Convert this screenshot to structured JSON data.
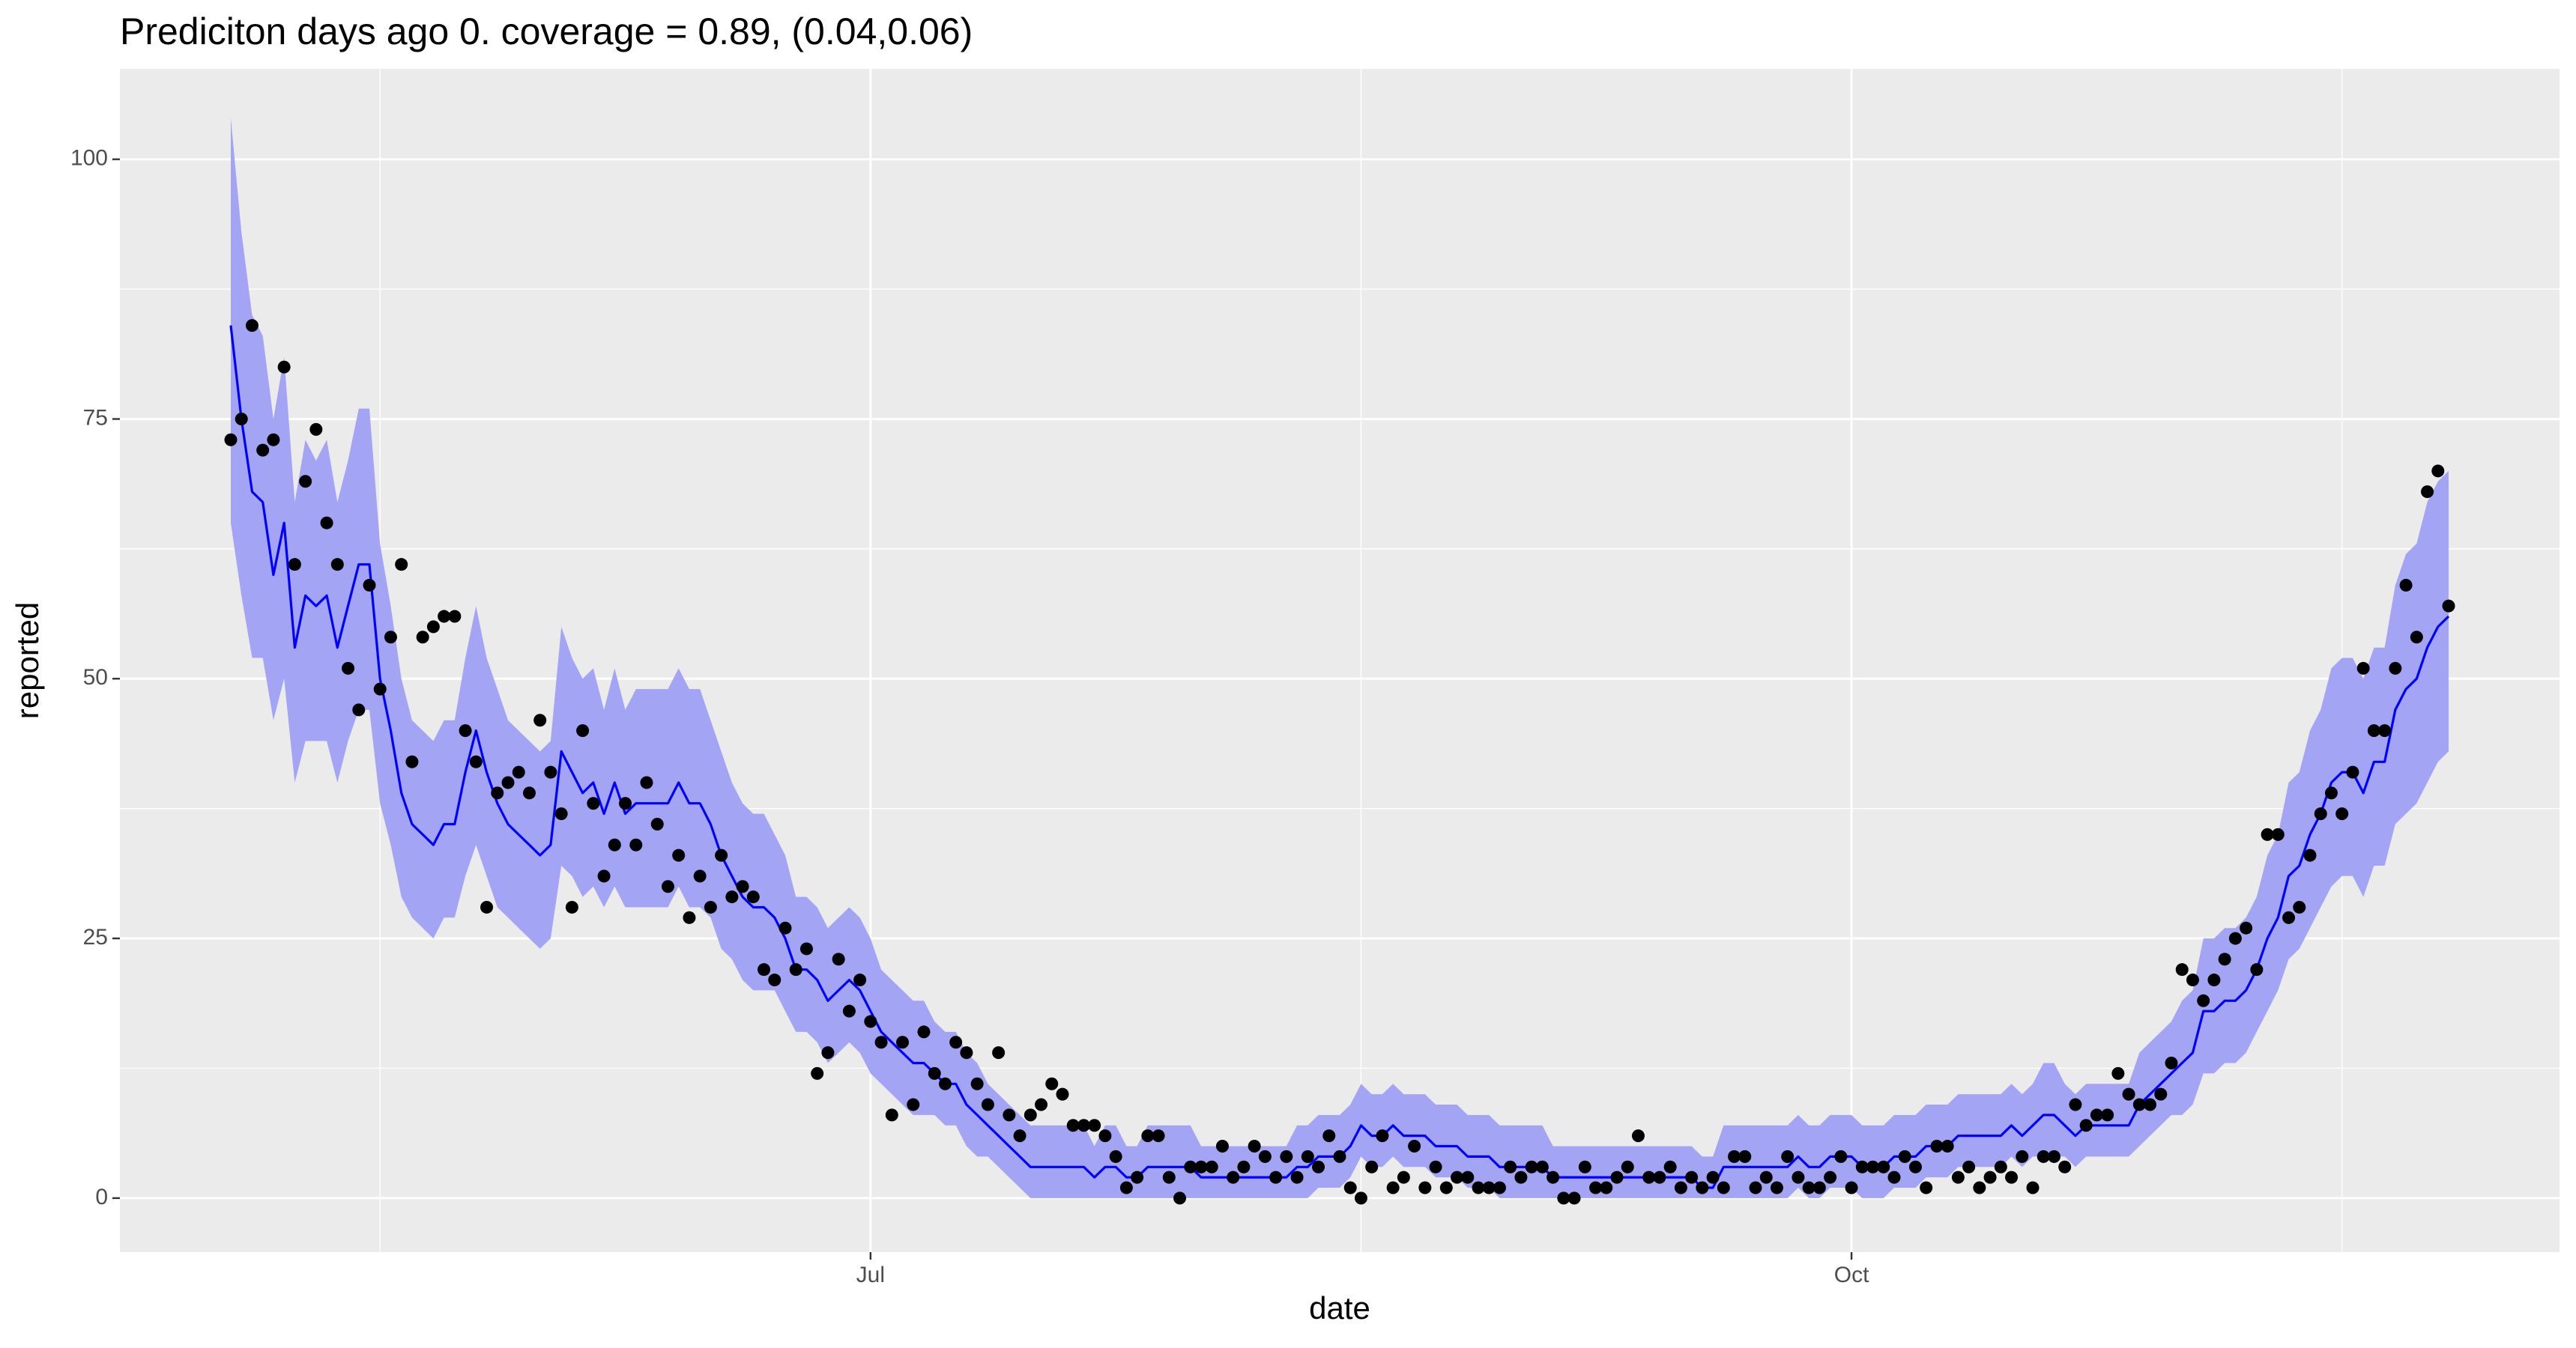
{
  "chart_data": {
    "type": "line",
    "title": "Prediciton days ago 0. coverage = 0.89, (0.04,0.06)",
    "x_label": "date",
    "y_label": "reported",
    "xlim": [
      111.6,
      340.4
    ],
    "xticks": [
      {
        "value": 182,
        "label": "Jul"
      },
      {
        "value": 274,
        "label": "Oct"
      }
    ],
    "ylim": [
      -5.2,
      108.7
    ],
    "yticks": [
      0,
      25,
      50,
      75,
      100
    ],
    "grid": true,
    "x": [
      122,
      123,
      124,
      125,
      126,
      127,
      128,
      129,
      130,
      131,
      132,
      133,
      134,
      135,
      136,
      137,
      138,
      139,
      140,
      141,
      142,
      143,
      144,
      145,
      146,
      147,
      148,
      149,
      150,
      151,
      152,
      153,
      154,
      155,
      156,
      157,
      158,
      159,
      160,
      161,
      162,
      163,
      164,
      165,
      166,
      167,
      168,
      169,
      170,
      171,
      172,
      173,
      174,
      175,
      176,
      177,
      178,
      179,
      180,
      181,
      182,
      183,
      184,
      185,
      186,
      187,
      188,
      189,
      190,
      191,
      192,
      193,
      194,
      195,
      196,
      197,
      198,
      199,
      200,
      201,
      202,
      203,
      204,
      205,
      206,
      207,
      208,
      209,
      210,
      211,
      212,
      213,
      214,
      215,
      216,
      217,
      218,
      219,
      220,
      221,
      222,
      223,
      224,
      225,
      226,
      227,
      228,
      229,
      230,
      231,
      232,
      233,
      234,
      235,
      236,
      237,
      238,
      239,
      240,
      241,
      242,
      243,
      244,
      245,
      246,
      247,
      248,
      249,
      250,
      251,
      252,
      253,
      254,
      255,
      256,
      257,
      258,
      259,
      260,
      261,
      262,
      263,
      264,
      265,
      266,
      267,
      268,
      269,
      270,
      271,
      272,
      273,
      274,
      275,
      276,
      277,
      278,
      279,
      280,
      281,
      282,
      283,
      284,
      285,
      286,
      287,
      288,
      289,
      290,
      291,
      292,
      293,
      294,
      295,
      296,
      297,
      298,
      299,
      300,
      301,
      302,
      303,
      304,
      305,
      306,
      307,
      308,
      309,
      310,
      311,
      312,
      313,
      314,
      315,
      316,
      317,
      318,
      319,
      320,
      321,
      322,
      323,
      324,
      325,
      326,
      327,
      328,
      329,
      330
    ],
    "band": {
      "color": "#a4a4f4",
      "lower": [
        65,
        58,
        52,
        52,
        46,
        50,
        40,
        44,
        44,
        44,
        40,
        44,
        47,
        47,
        38,
        34,
        29,
        27,
        26,
        25,
        27,
        27,
        31,
        34,
        31,
        28,
        27,
        26,
        25,
        24,
        25,
        32,
        31,
        29,
        30,
        28,
        30,
        28,
        28,
        28,
        28,
        28,
        30,
        28,
        28,
        27,
        24,
        23,
        21,
        20,
        20,
        20,
        18,
        16,
        16,
        15,
        13,
        14,
        15,
        14,
        12,
        11,
        10,
        9,
        8,
        8,
        8,
        7,
        7,
        5,
        4,
        4,
        3,
        2,
        1,
        0,
        0,
        0,
        0,
        0,
        0,
        0,
        0,
        0,
        0,
        0,
        0,
        0,
        0,
        0,
        0,
        0,
        0,
        0,
        0,
        0,
        0,
        0,
        0,
        0,
        0,
        0,
        1,
        1,
        1,
        2,
        4,
        3,
        3,
        4,
        3,
        3,
        3,
        2,
        2,
        2,
        1,
        1,
        1,
        0,
        0,
        0,
        0,
        0,
        0,
        0,
        0,
        0,
        0,
        0,
        0,
        0,
        0,
        0,
        0,
        0,
        0,
        0,
        0,
        0,
        0,
        0,
        0,
        0,
        0,
        0,
        0,
        1,
        0,
        0,
        1,
        1,
        1,
        0,
        0,
        0,
        1,
        1,
        1,
        2,
        2,
        2,
        3,
        3,
        3,
        3,
        3,
        4,
        3,
        4,
        4,
        4,
        4,
        3,
        4,
        4,
        4,
        4,
        4,
        5,
        6,
        7,
        8,
        8,
        9,
        12,
        12,
        13,
        13,
        14,
        16,
        18,
        20,
        23,
        24,
        26,
        28,
        30,
        31,
        31,
        29,
        32,
        32,
        36,
        37,
        38,
        40,
        42,
        43
      ],
      "upper": [
        104,
        93,
        85,
        83,
        75,
        81,
        67,
        73,
        71,
        73,
        67,
        71,
        76,
        76,
        63,
        57,
        50,
        46,
        45,
        44,
        46,
        46,
        52,
        57,
        52,
        49,
        46,
        45,
        44,
        43,
        44,
        55,
        52,
        50,
        51,
        47,
        51,
        47,
        49,
        49,
        49,
        49,
        51,
        49,
        49,
        46,
        43,
        40,
        38,
        37,
        37,
        35,
        33,
        29,
        29,
        28,
        26,
        27,
        28,
        27,
        25,
        22,
        21,
        20,
        19,
        19,
        17,
        16,
        16,
        14,
        13,
        11,
        10,
        9,
        8,
        7,
        7,
        7,
        7,
        7,
        7,
        5,
        7,
        7,
        5,
        5,
        7,
        7,
        7,
        7,
        7,
        5,
        5,
        5,
        5,
        5,
        5,
        5,
        5,
        5,
        7,
        7,
        8,
        8,
        8,
        9,
        11,
        10,
        10,
        11,
        10,
        10,
        10,
        9,
        9,
        9,
        8,
        8,
        8,
        7,
        7,
        7,
        7,
        7,
        5,
        5,
        5,
        5,
        5,
        5,
        5,
        5,
        5,
        5,
        5,
        5,
        5,
        5,
        4,
        4,
        7,
        7,
        7,
        7,
        7,
        7,
        7,
        8,
        7,
        7,
        8,
        8,
        8,
        7,
        7,
        7,
        8,
        8,
        8,
        9,
        9,
        9,
        10,
        10,
        10,
        10,
        10,
        11,
        10,
        11,
        13,
        13,
        11,
        10,
        11,
        11,
        11,
        11,
        11,
        14,
        15,
        16,
        17,
        19,
        20,
        25,
        25,
        26,
        26,
        27,
        29,
        33,
        35,
        40,
        41,
        45,
        47,
        51,
        52,
        52,
        50,
        53,
        53,
        59,
        62,
        63,
        67,
        69,
        70
      ]
    },
    "line": {
      "color": "#0000ff",
      "values": [
        84,
        75,
        68,
        67,
        60,
        65,
        53,
        58,
        57,
        58,
        53,
        57,
        61,
        61,
        50,
        45,
        39,
        36,
        35,
        34,
        36,
        36,
        41,
        45,
        41,
        38,
        36,
        35,
        34,
        33,
        34,
        43,
        41,
        39,
        40,
        37,
        40,
        37,
        38,
        38,
        38,
        38,
        40,
        38,
        38,
        36,
        33,
        31,
        29,
        28,
        28,
        27,
        25,
        22,
        22,
        21,
        19,
        20,
        21,
        20,
        18,
        16,
        15,
        14,
        13,
        13,
        12,
        11,
        11,
        9,
        8,
        7,
        6,
        5,
        4,
        3,
        3,
        3,
        3,
        3,
        3,
        2,
        3,
        3,
        2,
        2,
        3,
        3,
        3,
        3,
        3,
        2,
        2,
        2,
        2,
        2,
        2,
        2,
        2,
        2,
        3,
        3,
        4,
        4,
        4,
        5,
        7,
        6,
        6,
        7,
        6,
        6,
        6,
        5,
        5,
        5,
        4,
        4,
        4,
        3,
        3,
        3,
        3,
        3,
        2,
        2,
        2,
        2,
        2,
        2,
        2,
        2,
        2,
        2,
        2,
        2,
        2,
        2,
        1,
        1,
        3,
        3,
        3,
        3,
        3,
        3,
        3,
        4,
        3,
        3,
        4,
        4,
        4,
        3,
        3,
        3,
        4,
        4,
        4,
        5,
        5,
        5,
        6,
        6,
        6,
        6,
        6,
        7,
        6,
        7,
        8,
        8,
        7,
        6,
        7,
        7,
        7,
        7,
        7,
        9,
        10,
        11,
        12,
        13,
        14,
        18,
        18,
        19,
        19,
        20,
        22,
        25,
        27,
        31,
        32,
        35,
        37,
        40,
        41,
        41,
        39,
        42,
        42,
        47,
        49,
        50,
        53,
        55,
        56
      ]
    },
    "points": {
      "color": "#000000",
      "values": [
        73,
        75,
        84,
        72,
        73,
        80,
        61,
        69,
        74,
        65,
        61,
        51,
        47,
        59,
        49,
        54,
        61,
        42,
        54,
        55,
        56,
        56,
        45,
        42,
        28,
        39,
        40,
        41,
        39,
        46,
        41,
        37,
        28,
        45,
        38,
        31,
        34,
        38,
        34,
        40,
        36,
        30,
        33,
        27,
        31,
        28,
        33,
        29,
        30,
        29,
        22,
        21,
        26,
        22,
        24,
        12,
        14,
        23,
        18,
        21,
        17,
        15,
        8,
        15,
        9,
        16,
        12,
        11,
        15,
        14,
        11,
        9,
        14,
        8,
        6,
        8,
        9,
        11,
        10,
        7,
        7,
        7,
        6,
        4,
        1,
        2,
        6,
        6,
        2,
        0,
        3,
        3,
        3,
        5,
        2,
        3,
        5,
        4,
        2,
        4,
        2,
        4,
        3,
        6,
        4,
        1,
        0,
        3,
        6,
        1,
        2,
        5,
        1,
        3,
        1,
        2,
        2,
        1,
        1,
        1,
        3,
        2,
        3,
        3,
        2,
        0,
        0,
        3,
        1,
        1,
        2,
        3,
        6,
        2,
        2,
        3,
        1,
        2,
        1,
        2,
        1,
        4,
        4,
        1,
        2,
        1,
        4,
        2,
        1,
        1,
        2,
        4,
        1,
        3,
        3,
        3,
        2,
        4,
        3,
        1,
        5,
        5,
        2,
        3,
        1,
        2,
        3,
        2,
        4,
        1,
        4,
        4,
        3,
        9,
        7,
        8,
        8,
        12,
        10,
        9,
        9,
        10,
        13,
        22,
        21,
        19,
        21,
        23,
        25,
        26,
        22,
        35,
        35,
        27,
        28,
        33,
        37,
        39,
        37,
        41,
        51,
        45,
        45,
        51,
        59,
        54,
        68,
        70,
        57
      ]
    }
  }
}
